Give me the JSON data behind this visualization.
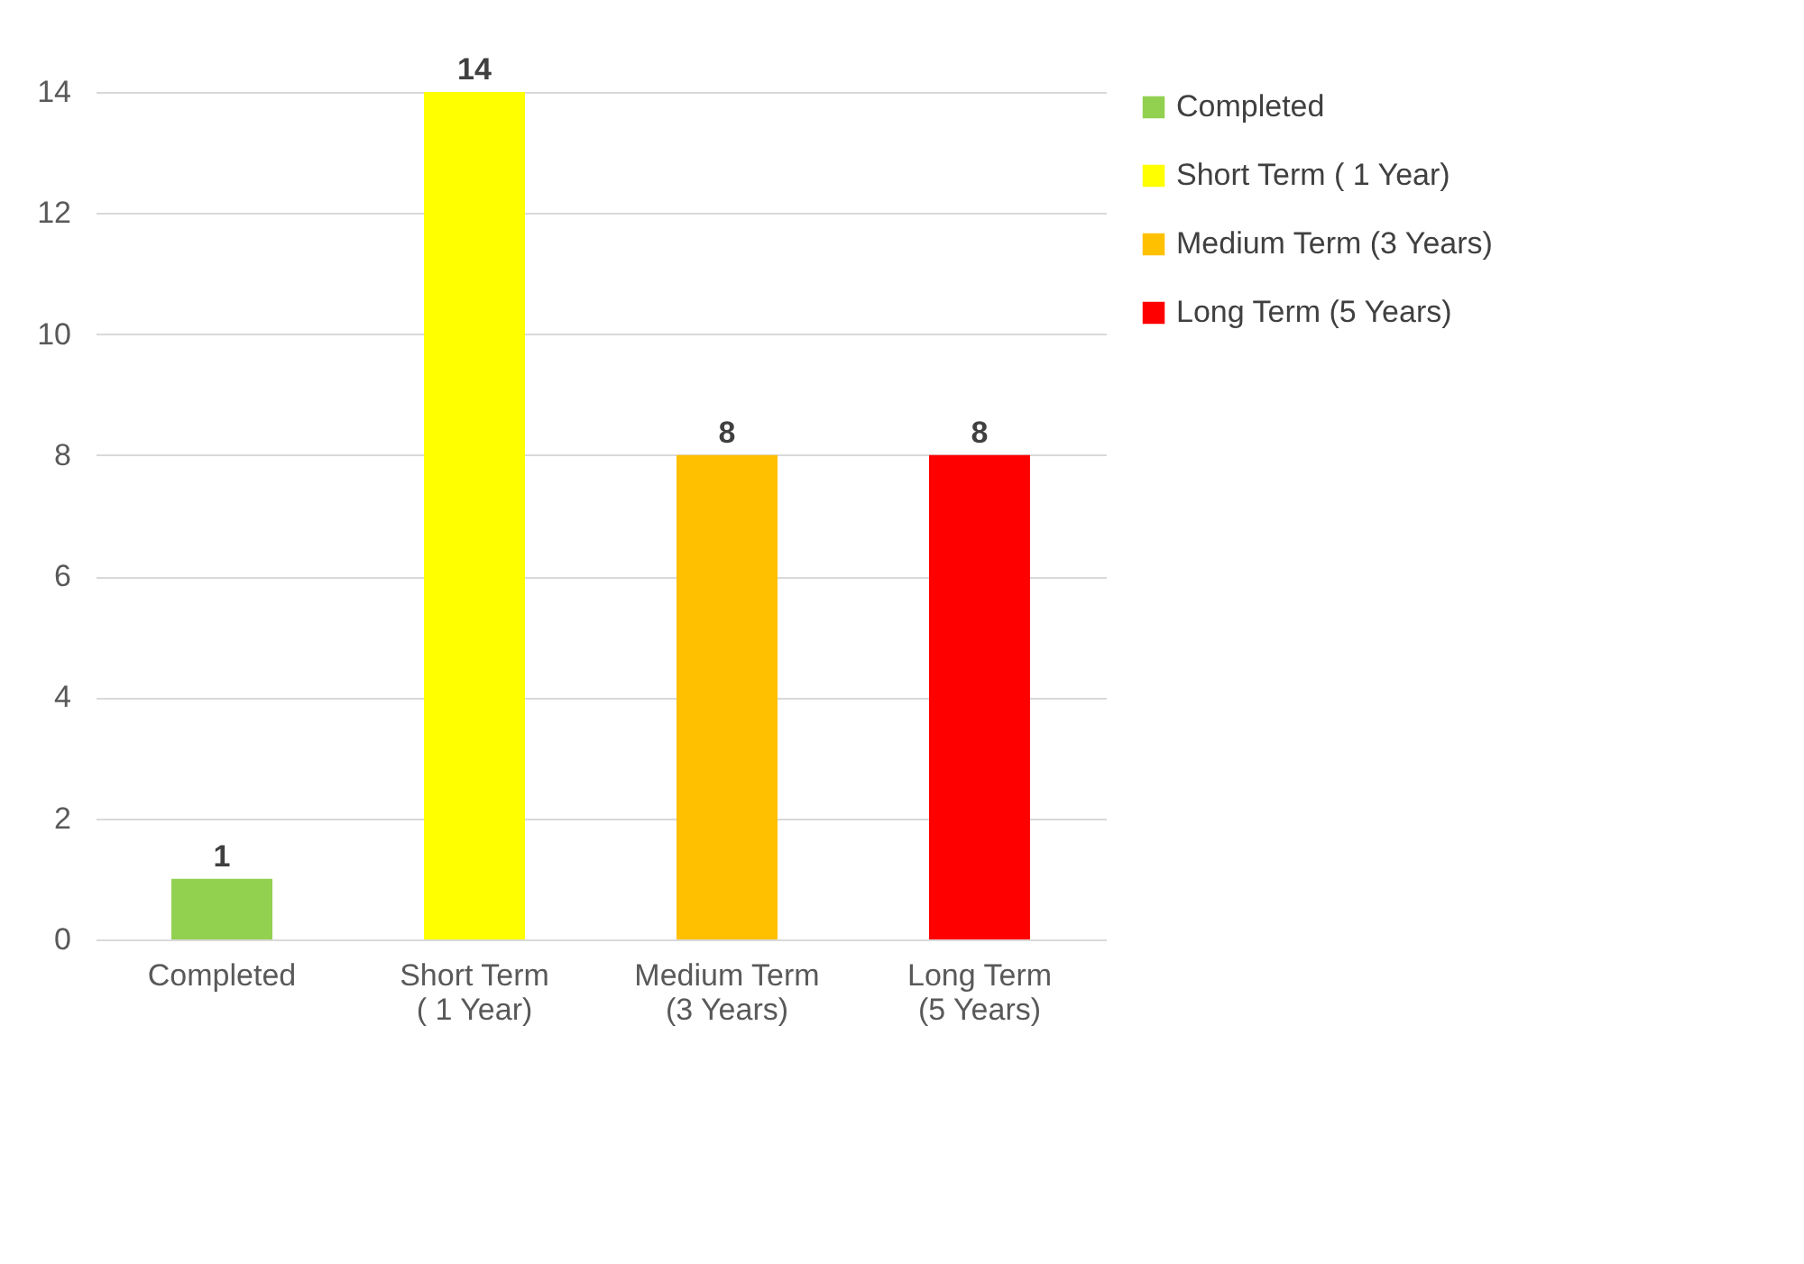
{
  "chart_data": {
    "type": "bar",
    "categories": [
      "Completed",
      "Short Term ( 1 Year)",
      "Medium Term (3 Years)",
      "Long Term (5 Years)"
    ],
    "series": [
      {
        "name": "Completed",
        "color": "#92d050",
        "values": [
          1,
          null,
          null,
          null
        ]
      },
      {
        "name": "Short Term ( 1 Year)",
        "color": "#ffff00",
        "values": [
          null,
          14,
          null,
          null
        ]
      },
      {
        "name": "Medium Term (3 Years)",
        "color": "#ffc000",
        "values": [
          null,
          null,
          8,
          null
        ]
      },
      {
        "name": "Long Term (5 Years)",
        "color": "#ff0000",
        "values": [
          null,
          null,
          null,
          8
        ]
      }
    ],
    "ylim": [
      0,
      14
    ],
    "yticks": [
      0,
      2,
      4,
      6,
      8,
      10,
      12,
      14
    ],
    "grid": "y",
    "legend": "right",
    "data_labels": true
  }
}
